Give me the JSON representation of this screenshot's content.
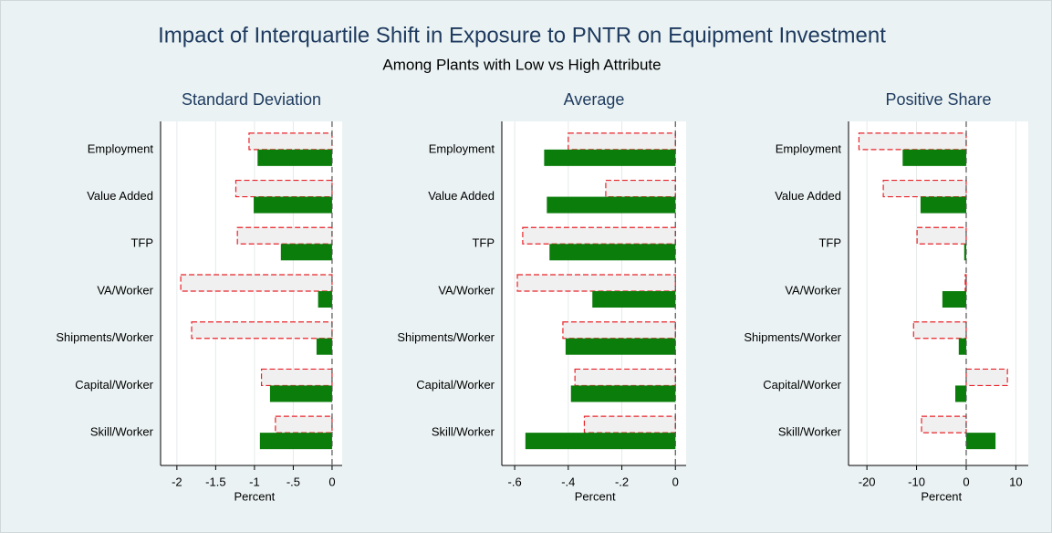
{
  "title": "Impact of Interquartile Shift in Exposure to PNTR on Equipment Investment",
  "subtitle": "Among Plants with Low vs High Attribute",
  "chart_data": [
    {
      "type": "bar",
      "orientation": "horizontal",
      "title": "Standard Deviation",
      "xlabel": "Percent",
      "categories": [
        "Employment",
        "Value Added",
        "TFP",
        "VA/Worker",
        "Shipments/Worker",
        "Capital/Worker",
        "Skill/Worker"
      ],
      "series": [
        {
          "color": "#f0f0f0",
          "edgecolor": "#e8232a",
          "linestyle": "dashed",
          "values": [
            -1.07,
            -1.24,
            -1.22,
            -1.95,
            -1.81,
            -0.91,
            -0.73
          ]
        },
        {
          "color": "#0a7d0a",
          "values": [
            -0.96,
            -1.01,
            -0.66,
            -0.18,
            -0.2,
            -0.8,
            -0.93
          ]
        }
      ],
      "xlim": [
        -2.21,
        0.13
      ],
      "xticks": [
        -2,
        -1.5,
        -1,
        {
          "value": -0.5,
          "label": "-.5"
        },
        0
      ],
      "vline": 0,
      "grid": true
    },
    {
      "type": "bar",
      "orientation": "horizontal",
      "title": "Average",
      "xlabel": "Percent",
      "categories": [
        "Employment",
        "Value Added",
        "TFP",
        "VA/Worker",
        "Shipments/Worker",
        "Capital/Worker",
        "Skill/Worker"
      ],
      "series": [
        {
          "color": "#f0f0f0",
          "edgecolor": "#e8232a",
          "linestyle": "dashed",
          "values": [
            -0.4,
            -0.26,
            -0.57,
            -0.59,
            -0.42,
            -0.375,
            -0.34
          ]
        },
        {
          "color": "#0a7d0a",
          "values": [
            -0.49,
            -0.48,
            -0.47,
            -0.31,
            -0.41,
            -0.39,
            -0.56
          ]
        }
      ],
      "xlim": [
        -0.648,
        0.04
      ],
      "xticks": [
        {
          "value": -0.6,
          "label": "-.6"
        },
        {
          "value": -0.4,
          "label": "-.4"
        },
        {
          "value": -0.2,
          "label": "-.2"
        },
        0
      ],
      "vline": 0,
      "grid": true
    },
    {
      "type": "bar",
      "orientation": "horizontal",
      "title": "Positive Share",
      "xlabel": "Percent",
      "categories": [
        "Employment",
        "Value Added",
        "TFP",
        "VA/Worker",
        "Shipments/Worker",
        "Capital/Worker",
        "Skill/Worker"
      ],
      "series": [
        {
          "color": "#f0f0f0",
          "edgecolor": "#e8232a",
          "linestyle": "dashed",
          "values": [
            -21.6,
            -16.7,
            -9.9,
            -0.2,
            -10.6,
            8.3,
            -9.0
          ]
        },
        {
          "color": "#0a7d0a",
          "values": [
            -12.8,
            -9.2,
            -0.4,
            -4.8,
            -1.5,
            -2.2,
            5.9
          ]
        }
      ],
      "xlim": [
        -23.7,
        12.5
      ],
      "xticks": [
        -20,
        -10,
        0,
        10
      ],
      "vline": 0,
      "grid": true
    }
  ]
}
